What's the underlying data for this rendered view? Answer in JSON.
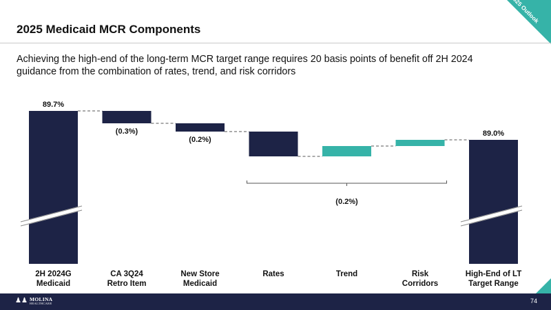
{
  "slide": {
    "title": "2025 Medicaid MCR Components",
    "subtitle": "Achieving the high-end of the long-term MCR target range requires 20 basis points of benefit off 2H 2024 guidance from the combination of rates, trend, and risk corridors",
    "corner_badge": "2025 Outlook",
    "page_number": "74",
    "logo": {
      "name": "MOLINA",
      "tagline": "HEALTHCARE"
    }
  },
  "colors": {
    "navy": "#1d2346",
    "teal": "#36b3a8",
    "connector": "#555555"
  },
  "chart_data": {
    "type": "waterfall",
    "title": "",
    "unit": "%",
    "categories": [
      "2H 2024G Medicaid",
      "CA 3Q24 Retro Item",
      "New Store Medicaid",
      "Rates",
      "Trend",
      "Risk Corridors",
      "High-End of LT Target Range"
    ],
    "category_lines": [
      [
        "2H 2024G",
        "Medicaid"
      ],
      [
        "CA 3Q24",
        "Retro Item"
      ],
      [
        "New Store",
        "Medicaid"
      ],
      [
        "Rates"
      ],
      [
        "Trend"
      ],
      [
        "Risk",
        "Corridors"
      ],
      [
        "High-End of LT",
        "Target Range"
      ]
    ],
    "steps": [
      {
        "category": "2H 2024G Medicaid",
        "kind": "total",
        "value": 89.7,
        "label": "89.7%",
        "color": "navy"
      },
      {
        "category": "CA 3Q24 Retro Item",
        "kind": "delta",
        "value": -0.3,
        "label": "(0.3%)",
        "color": "navy"
      },
      {
        "category": "New Store Medicaid",
        "kind": "delta",
        "value": -0.2,
        "label": "(0.2%)",
        "color": "navy"
      },
      {
        "category": "Rates",
        "kind": "delta",
        "value": -0.6,
        "label": "",
        "color": "navy"
      },
      {
        "category": "Trend",
        "kind": "delta",
        "value": 0.25,
        "label": "",
        "color": "teal"
      },
      {
        "category": "Risk Corridors",
        "kind": "delta",
        "value": 0.15,
        "label": "",
        "color": "teal"
      },
      {
        "category": "High-End of LT Target Range",
        "kind": "total",
        "value": 89.0,
        "label": "89.0%",
        "color": "navy"
      }
    ],
    "group_bracket": {
      "from": "Rates",
      "to": "Risk Corridors",
      "net_value": -0.2,
      "label": "(0.2%)"
    },
    "y_axis": {
      "broken": true,
      "visible_range": [
        88.3,
        89.7
      ],
      "ticks": false,
      "grid": false
    },
    "legend": "none"
  }
}
